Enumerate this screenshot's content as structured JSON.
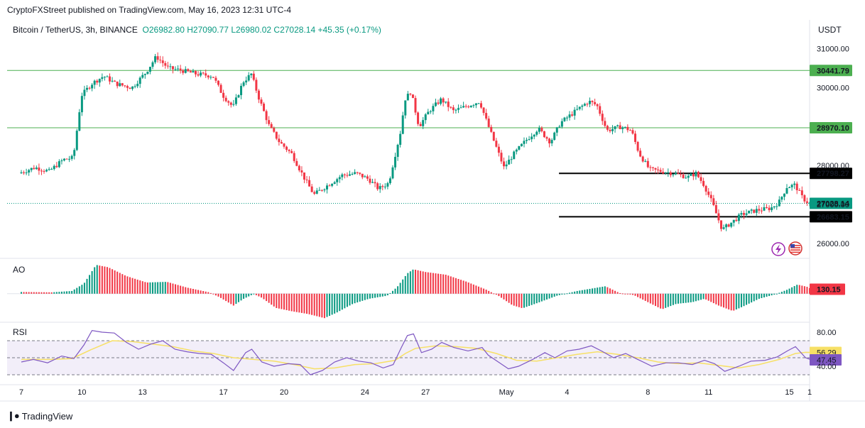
{
  "header": {
    "published": "CryptoFXStreet published on TradingView.com, May 16, 2023 12:31 UTC-4",
    "symbol": "Bitcoin / TetherUS, 3h, BINANCE",
    "open": "O26982.80",
    "high": "H27090.77",
    "low": "L26980.02",
    "close": "C27028.14",
    "change": "+45.35 (+0.17%)"
  },
  "footer": {
    "brand": "TradingView",
    "logo_icon": "tradingview-logo-icon"
  },
  "colors": {
    "up": "#089981",
    "down": "#f23645",
    "support_line": "#4caf50",
    "black_line": "#000000",
    "rsi": "#7e57c2",
    "rsi_ma": "#f7e066"
  },
  "chart_data": [
    {
      "type": "candlestick",
      "name": "price",
      "title": "Bitcoin / TetherUS, 3h, BINANCE",
      "currency": "USDT",
      "ylim": [
        25650,
        31250
      ],
      "y_ticks": [
        26000,
        27000,
        28000,
        29000,
        30000,
        31000
      ],
      "y_tick_labels": [
        "26000.00",
        "27000.00",
        "28000.00",
        "",
        "30000.00",
        "31000.00"
      ],
      "x_ticks": [
        {
          "day": 7,
          "label": "7"
        },
        {
          "day": 10,
          "label": "10"
        },
        {
          "day": 13,
          "label": "13"
        },
        {
          "day": 17,
          "label": "17"
        },
        {
          "day": 20,
          "label": "20"
        },
        {
          "day": 24,
          "label": "24"
        },
        {
          "day": 27,
          "label": "27"
        },
        {
          "day": 31,
          "label": "May"
        },
        {
          "day": 34,
          "label": "4"
        },
        {
          "day": 38,
          "label": "8"
        },
        {
          "day": 41,
          "label": "11"
        },
        {
          "day": 45,
          "label": "15"
        },
        {
          "day": 46,
          "label": "1"
        }
      ],
      "x_range_days": [
        7,
        46
      ],
      "x_note": "days counted from April 0 (May 1 = 31)",
      "price_path": [
        [
          7.0,
          27800
        ],
        [
          7.8,
          27950
        ],
        [
          8.5,
          27850
        ],
        [
          9.2,
          28150
        ],
        [
          9.7,
          28200
        ],
        [
          10.1,
          29800
        ],
        [
          10.6,
          30100
        ],
        [
          11.2,
          30300
        ],
        [
          11.8,
          30100
        ],
        [
          12.6,
          30000
        ],
        [
          13.3,
          30400
        ],
        [
          13.8,
          30800
        ],
        [
          14.4,
          30500
        ],
        [
          15.0,
          30450
        ],
        [
          15.8,
          30350
        ],
        [
          16.6,
          30300
        ],
        [
          17.1,
          29800
        ],
        [
          17.6,
          29500
        ],
        [
          18.1,
          30150
        ],
        [
          18.5,
          30350
        ],
        [
          18.9,
          29700
        ],
        [
          19.4,
          29000
        ],
        [
          19.9,
          28600
        ],
        [
          20.5,
          28300
        ],
        [
          21.1,
          27700
        ],
        [
          21.6,
          27250
        ],
        [
          22.3,
          27500
        ],
        [
          23.0,
          27750
        ],
        [
          23.7,
          27800
        ],
        [
          24.3,
          27650
        ],
        [
          24.8,
          27400
        ],
        [
          25.3,
          27550
        ],
        [
          25.9,
          28900
        ],
        [
          26.1,
          29700
        ],
        [
          26.4,
          29900
        ],
        [
          26.8,
          29000
        ],
        [
          27.3,
          29400
        ],
        [
          27.9,
          29700
        ],
        [
          28.5,
          29400
        ],
        [
          29.3,
          29550
        ],
        [
          29.8,
          29650
        ],
        [
          30.1,
          29200
        ],
        [
          30.6,
          28500
        ],
        [
          31.0,
          27950
        ],
        [
          31.5,
          28300
        ],
        [
          32.1,
          28650
        ],
        [
          32.7,
          28950
        ],
        [
          33.3,
          28600
        ],
        [
          33.8,
          29100
        ],
        [
          34.3,
          29300
        ],
        [
          34.8,
          29500
        ],
        [
          35.2,
          29650
        ],
        [
          35.6,
          29550
        ],
        [
          36.1,
          28900
        ],
        [
          36.8,
          29000
        ],
        [
          37.3,
          28900
        ],
        [
          37.7,
          28300
        ],
        [
          38.2,
          27900
        ],
        [
          38.8,
          27850
        ],
        [
          39.4,
          27800
        ],
        [
          40.1,
          27700
        ],
        [
          40.5,
          27800
        ],
        [
          40.9,
          27500
        ],
        [
          41.3,
          27050
        ],
        [
          41.8,
          26350
        ],
        [
          42.3,
          26550
        ],
        [
          42.8,
          26750
        ],
        [
          43.5,
          26850
        ],
        [
          44.2,
          26900
        ],
        [
          44.6,
          27050
        ],
        [
          45.0,
          27450
        ],
        [
          45.4,
          27500
        ],
        [
          45.8,
          27150
        ],
        [
          46.1,
          27028
        ]
      ],
      "current_price": 27028.14,
      "levels": [
        {
          "value": 30441.79,
          "label": "30441.79",
          "style": "green-full"
        },
        {
          "value": 28970.1,
          "label": "28970.10",
          "style": "green-full"
        },
        {
          "value": 27798.27,
          "label": "27798.27",
          "style": "black-partial"
        },
        {
          "value": 26683.15,
          "label": "26683.15",
          "style": "black-partial"
        }
      ],
      "current_label": "27028.14"
    },
    {
      "type": "bar",
      "name": "AO",
      "label": "AO",
      "last_value": 130.15,
      "last_label": "130.15",
      "ylim": [
        -800,
        1000
      ],
      "path": [
        [
          7.0,
          50
        ],
        [
          8.5,
          40
        ],
        [
          9.5,
          80
        ],
        [
          10.1,
          300
        ],
        [
          10.7,
          850
        ],
        [
          11.3,
          780
        ],
        [
          12.2,
          520
        ],
        [
          13.2,
          330
        ],
        [
          14.2,
          350
        ],
        [
          15.2,
          180
        ],
        [
          16.3,
          40
        ],
        [
          16.8,
          -100
        ],
        [
          17.5,
          -350
        ],
        [
          18.0,
          -150
        ],
        [
          18.5,
          -10
        ],
        [
          18.9,
          -120
        ],
        [
          19.6,
          -420
        ],
        [
          20.4,
          -520
        ],
        [
          21.2,
          -600
        ],
        [
          22.0,
          -720
        ],
        [
          22.6,
          -560
        ],
        [
          23.4,
          -300
        ],
        [
          24.2,
          -150
        ],
        [
          25.1,
          -60
        ],
        [
          25.6,
          200
        ],
        [
          26.1,
          600
        ],
        [
          26.4,
          720
        ],
        [
          27.0,
          640
        ],
        [
          28.0,
          560
        ],
        [
          29.0,
          360
        ],
        [
          30.0,
          120
        ],
        [
          30.6,
          -60
        ],
        [
          31.3,
          -340
        ],
        [
          31.8,
          -430
        ],
        [
          32.6,
          -260
        ],
        [
          33.5,
          -60
        ],
        [
          34.5,
          80
        ],
        [
          35.3,
          160
        ],
        [
          35.9,
          220
        ],
        [
          36.6,
          20
        ],
        [
          37.3,
          -40
        ],
        [
          38.0,
          -250
        ],
        [
          38.7,
          -460
        ],
        [
          39.4,
          -300
        ],
        [
          40.2,
          -250
        ],
        [
          40.8,
          -150
        ],
        [
          41.5,
          -350
        ],
        [
          42.2,
          -510
        ],
        [
          42.7,
          -380
        ],
        [
          43.5,
          -150
        ],
        [
          44.3,
          -20
        ],
        [
          44.9,
          120
        ],
        [
          45.4,
          270
        ],
        [
          45.9,
          200
        ],
        [
          46.1,
          130
        ]
      ]
    },
    {
      "type": "line",
      "name": "RSI",
      "label": "RSI",
      "ylim": [
        20,
        90
      ],
      "bands": [
        30,
        50,
        70
      ],
      "tick_labels": [
        {
          "value": 80,
          "label": "80.00"
        },
        {
          "value": 40,
          "label": "40.00"
        }
      ],
      "rsi_label": "47.45",
      "rsi_ma_label": "56.29",
      "rsi_path": [
        [
          7.0,
          45
        ],
        [
          7.6,
          48
        ],
        [
          8.3,
          44
        ],
        [
          9.0,
          52
        ],
        [
          9.6,
          49
        ],
        [
          10.1,
          65
        ],
        [
          10.5,
          82
        ],
        [
          11.0,
          80
        ],
        [
          11.6,
          79
        ],
        [
          12.2,
          68
        ],
        [
          12.8,
          60
        ],
        [
          13.4,
          66
        ],
        [
          14.0,
          70
        ],
        [
          14.6,
          60
        ],
        [
          15.2,
          57
        ],
        [
          15.8,
          55
        ],
        [
          16.4,
          54
        ],
        [
          17.0,
          44
        ],
        [
          17.5,
          35
        ],
        [
          18.1,
          56
        ],
        [
          18.4,
          60
        ],
        [
          18.9,
          45
        ],
        [
          19.5,
          40
        ],
        [
          20.2,
          43
        ],
        [
          20.8,
          42
        ],
        [
          21.3,
          30
        ],
        [
          21.9,
          35
        ],
        [
          22.5,
          45
        ],
        [
          23.1,
          50
        ],
        [
          23.7,
          46
        ],
        [
          24.3,
          44
        ],
        [
          24.9,
          38
        ],
        [
          25.4,
          42
        ],
        [
          25.8,
          62
        ],
        [
          26.1,
          76
        ],
        [
          26.4,
          78
        ],
        [
          26.8,
          56
        ],
        [
          27.3,
          60
        ],
        [
          27.8,
          68
        ],
        [
          28.4,
          62
        ],
        [
          29.1,
          58
        ],
        [
          29.8,
          62
        ],
        [
          30.1,
          53
        ],
        [
          30.6,
          45
        ],
        [
          31.1,
          37
        ],
        [
          31.6,
          40
        ],
        [
          32.3,
          48
        ],
        [
          32.9,
          56
        ],
        [
          33.4,
          50
        ],
        [
          34.0,
          58
        ],
        [
          34.6,
          60
        ],
        [
          35.2,
          64
        ],
        [
          35.7,
          58
        ],
        [
          36.3,
          50
        ],
        [
          36.9,
          55
        ],
        [
          37.5,
          48
        ],
        [
          38.2,
          40
        ],
        [
          38.9,
          44
        ],
        [
          39.5,
          44
        ],
        [
          40.2,
          42
        ],
        [
          40.8,
          47
        ],
        [
          41.3,
          43
        ],
        [
          41.8,
          34
        ],
        [
          42.5,
          40
        ],
        [
          43.1,
          46
        ],
        [
          43.8,
          47
        ],
        [
          44.4,
          51
        ],
        [
          44.9,
          58
        ],
        [
          45.3,
          63
        ],
        [
          45.8,
          50
        ],
        [
          46.1,
          47.45
        ]
      ],
      "ma_path": [
        [
          7.0,
          48
        ],
        [
          8.5,
          48
        ],
        [
          9.5,
          49
        ],
        [
          10.5,
          60
        ],
        [
          11.5,
          70
        ],
        [
          12.5,
          69
        ],
        [
          13.5,
          66
        ],
        [
          14.5,
          63
        ],
        [
          15.5,
          58
        ],
        [
          16.5,
          55
        ],
        [
          17.5,
          50
        ],
        [
          18.5,
          48
        ],
        [
          19.5,
          46
        ],
        [
          20.5,
          42
        ],
        [
          21.5,
          37
        ],
        [
          22.5,
          38
        ],
        [
          23.5,
          42
        ],
        [
          24.5,
          43
        ],
        [
          25.5,
          47
        ],
        [
          26.0,
          55
        ],
        [
          26.5,
          61
        ],
        [
          27.5,
          64
        ],
        [
          28.5,
          63
        ],
        [
          29.5,
          61
        ],
        [
          30.5,
          55
        ],
        [
          31.5,
          47
        ],
        [
          32.5,
          46
        ],
        [
          33.5,
          50
        ],
        [
          34.5,
          54
        ],
        [
          35.5,
          57
        ],
        [
          36.5,
          54
        ],
        [
          37.5,
          50
        ],
        [
          38.5,
          45
        ],
        [
          39.5,
          43
        ],
        [
          40.5,
          44
        ],
        [
          41.5,
          41
        ],
        [
          42.5,
          38
        ],
        [
          43.5,
          42
        ],
        [
          44.5,
          48
        ],
        [
          45.3,
          55
        ],
        [
          45.8,
          56.3
        ],
        [
          46.1,
          56.29
        ]
      ]
    }
  ]
}
